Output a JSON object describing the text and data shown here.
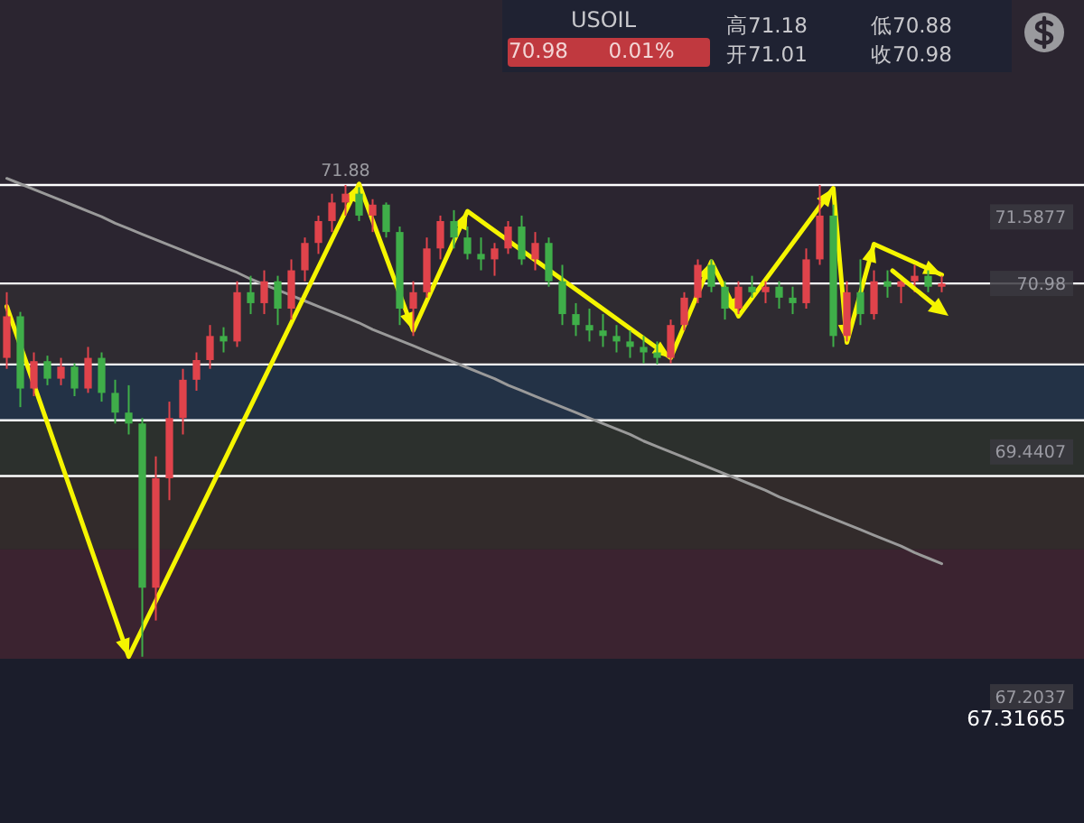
{
  "chart_data": [
    {
      "type": "candlestick",
      "title": "USOIL",
      "categories": [
        null,
        null,
        null,
        null,
        null,
        null,
        null,
        null,
        null,
        null,
        null,
        null,
        null,
        null,
        null,
        null,
        null,
        null,
        null,
        null,
        null,
        null,
        null,
        null,
        null,
        null,
        null,
        null,
        null,
        null,
        null,
        null,
        null,
        null,
        null,
        null,
        null,
        null,
        null,
        null,
        null,
        null,
        null,
        null,
        null,
        null,
        null,
        null,
        null,
        null,
        null,
        null,
        null,
        null,
        null,
        null,
        null,
        null,
        null,
        null,
        null,
        null,
        null,
        null,
        null,
        null,
        null,
        null,
        null,
        null
      ],
      "ohlc": [
        [
          70.3,
          70.9,
          70.2,
          70.68
        ],
        [
          70.68,
          70.72,
          69.85,
          70.02
        ],
        [
          70.02,
          70.35,
          69.95,
          70.27
        ],
        [
          70.27,
          70.32,
          70.05,
          70.11
        ],
        [
          70.11,
          70.3,
          70.05,
          70.22
        ],
        [
          70.22,
          70.25,
          69.95,
          70.02
        ],
        [
          70.02,
          70.4,
          69.98,
          70.3
        ],
        [
          70.3,
          70.35,
          69.9,
          69.98
        ],
        [
          69.98,
          70.1,
          69.7,
          69.8
        ],
        [
          69.8,
          70.05,
          69.6,
          69.7
        ],
        [
          69.7,
          69.75,
          67.57,
          68.2
        ],
        [
          68.2,
          69.4,
          67.9,
          69.2
        ],
        [
          69.2,
          69.9,
          69.0,
          69.75
        ],
        [
          69.75,
          70.2,
          69.6,
          70.1
        ],
        [
          70.1,
          70.35,
          70.0,
          70.28
        ],
        [
          70.28,
          70.6,
          70.2,
          70.5
        ],
        [
          70.5,
          70.58,
          70.35,
          70.45
        ],
        [
          70.45,
          71.0,
          70.4,
          70.9
        ],
        [
          70.9,
          71.05,
          70.7,
          70.8
        ],
        [
          70.8,
          71.1,
          70.7,
          71.0
        ],
        [
          71.0,
          71.05,
          70.6,
          70.75
        ],
        [
          70.75,
          71.2,
          70.65,
          71.1
        ],
        [
          71.1,
          71.4,
          71.0,
          71.35
        ],
        [
          71.35,
          71.6,
          71.25,
          71.55
        ],
        [
          71.55,
          71.8,
          71.45,
          71.72
        ],
        [
          71.72,
          71.88,
          71.6,
          71.8
        ],
        [
          71.8,
          71.86,
          71.55,
          71.6
        ],
        [
          71.6,
          71.75,
          71.45,
          71.7
        ],
        [
          71.7,
          71.72,
          71.4,
          71.45
        ],
        [
          71.45,
          71.5,
          70.6,
          70.75
        ],
        [
          70.75,
          71.0,
          70.5,
          70.9
        ],
        [
          70.9,
          71.4,
          70.85,
          71.3
        ],
        [
          71.3,
          71.6,
          71.2,
          71.55
        ],
        [
          71.55,
          71.65,
          71.3,
          71.4
        ],
        [
          71.4,
          71.5,
          71.2,
          71.25
        ],
        [
          71.25,
          71.4,
          71.1,
          71.2
        ],
        [
          71.2,
          71.35,
          71.05,
          71.3
        ],
        [
          71.3,
          71.55,
          71.25,
          71.5
        ],
        [
          71.5,
          71.6,
          71.15,
          71.2
        ],
        [
          71.2,
          71.45,
          71.1,
          71.35
        ],
        [
          71.35,
          71.4,
          70.95,
          71.0
        ],
        [
          71.0,
          71.15,
          70.6,
          70.7
        ],
        [
          70.7,
          70.8,
          70.5,
          70.6
        ],
        [
          70.6,
          70.75,
          70.45,
          70.55
        ],
        [
          70.55,
          70.7,
          70.4,
          70.5
        ],
        [
          70.5,
          70.6,
          70.35,
          70.45
        ],
        [
          70.45,
          70.55,
          70.3,
          70.4
        ],
        [
          70.4,
          70.5,
          70.25,
          70.35
        ],
        [
          70.35,
          70.45,
          70.24,
          70.3
        ],
        [
          70.3,
          70.65,
          70.25,
          70.6
        ],
        [
          70.6,
          70.9,
          70.55,
          70.85
        ],
        [
          70.85,
          71.2,
          70.8,
          71.15
        ],
        [
          71.15,
          71.2,
          70.9,
          70.95
        ],
        [
          70.95,
          71.0,
          70.65,
          70.75
        ],
        [
          70.75,
          71.0,
          70.7,
          70.95
        ],
        [
          70.95,
          71.05,
          70.85,
          70.9
        ],
        [
          70.9,
          71.0,
          70.8,
          70.95
        ],
        [
          70.95,
          71.0,
          70.75,
          70.85
        ],
        [
          70.85,
          70.95,
          70.7,
          70.8
        ],
        [
          70.8,
          71.3,
          70.75,
          71.2
        ],
        [
          71.2,
          71.88,
          71.15,
          71.6
        ],
        [
          71.6,
          71.7,
          70.4,
          70.5
        ],
        [
          70.5,
          71.0,
          70.45,
          70.9
        ],
        [
          70.9,
          71.2,
          70.6,
          70.7
        ],
        [
          70.7,
          71.1,
          70.65,
          71.0
        ],
        [
          71.0,
          71.1,
          70.85,
          70.95
        ],
        [
          70.95,
          71.05,
          70.8,
          71.0
        ],
        [
          71.0,
          71.15,
          70.9,
          71.05
        ],
        [
          71.05,
          71.1,
          70.9,
          70.95
        ],
        [
          70.95,
          71.05,
          70.9,
          70.98
        ]
      ],
      "colors": [
        "#e0434b",
        "#3fae49",
        "#e0434b",
        "#3fae49",
        "#e0434b",
        "#3fae49",
        "#e0434b",
        "#3fae49",
        "#3fae49",
        "#3fae49",
        "#3fae49",
        "#e0434b",
        "#e0434b",
        "#e0434b",
        "#e0434b",
        "#e0434b",
        "#3fae49",
        "#e0434b",
        "#3fae49",
        "#e0434b",
        "#3fae49",
        "#e0434b",
        "#e0434b",
        "#e0434b",
        "#e0434b",
        "#e0434b",
        "#3fae49",
        "#e0434b",
        "#3fae49",
        "#3fae49",
        "#e0434b",
        "#e0434b",
        "#e0434b",
        "#3fae49",
        "#3fae49",
        "#3fae49",
        "#e0434b",
        "#e0434b",
        "#3fae49",
        "#e0434b",
        "#3fae49",
        "#3fae49",
        "#3fae49",
        "#3fae49",
        "#3fae49",
        "#3fae49",
        "#3fae49",
        "#3fae49",
        "#3fae49",
        "#e0434b",
        "#e0434b",
        "#e0434b",
        "#3fae49",
        "#3fae49",
        "#e0434b",
        "#3fae49",
        "#e0434b",
        "#3fae49",
        "#3fae49",
        "#e0434b",
        "#e0434b",
        "#3fae49",
        "#e0434b",
        "#3fae49",
        "#e0434b",
        "#3fae49",
        "#e0434b",
        "#e0434b",
        "#3fae49",
        "#e0434b"
      ],
      "ylim": [
        66.05,
        73.57
      ],
      "yticks": [
        71.5877,
        70.98,
        69.4407,
        67.2037
      ],
      "tick_labels": "y",
      "ref_lines": [
        {
          "axis": "y",
          "value": 71.88,
          "color": "#ffffff"
        },
        {
          "axis": "y",
          "value": 70.98,
          "color": "#ffffff"
        },
        {
          "axis": "y",
          "value": 70.24,
          "color": "#ffffff"
        },
        {
          "axis": "y",
          "value": 69.73,
          "color": "#ffffff"
        },
        {
          "axis": "y",
          "value": 69.22,
          "color": "#ffffff"
        }
      ],
      "bands": [
        {
          "axis": "y",
          "from": 70.98,
          "to": 70.24,
          "color": "#2f2b31"
        },
        {
          "axis": "y",
          "from": 70.24,
          "to": 69.73,
          "color": "#233246"
        },
        {
          "axis": "y",
          "from": 69.73,
          "to": 69.22,
          "color": "#2c302d"
        },
        {
          "axis": "y",
          "from": 69.22,
          "to": 68.55,
          "color": "#322b2b"
        },
        {
          "axis": "y",
          "from": 68.55,
          "to": 67.55,
          "color": "#3b2330"
        },
        {
          "axis": "y",
          "from": 67.55,
          "to": 66.05,
          "color": "#1b1d2b"
        }
      ],
      "annotations": [
        "70.98",
        "0.01%",
        "高71.18",
        "开71.01",
        "低70.88",
        "收70.98",
        {
          "text": "71.88",
          "y": 71.88
        },
        "67.31665"
      ]
    },
    {
      "type": "line",
      "marker": "none",
      "tick_labels": false,
      "categories": [
        null,
        null,
        null,
        null,
        null,
        null,
        null,
        null,
        null,
        null,
        null,
        null,
        null,
        null,
        null,
        null,
        null,
        null,
        null,
        null,
        null,
        null,
        null,
        null,
        null,
        null,
        null,
        null,
        null,
        null,
        null,
        null,
        null,
        null,
        null,
        null,
        null,
        null,
        null,
        null,
        null,
        null,
        null,
        null,
        null,
        null,
        null,
        null,
        null,
        null,
        null,
        null,
        null,
        null,
        null,
        null,
        null,
        null,
        null,
        null,
        null,
        null,
        null,
        null,
        null,
        null,
        null,
        null,
        null,
        null
      ],
      "ylim": [
        66.05,
        73.57
      ],
      "series": [
        {
          "type": "line",
          "color": "#9a9a9a",
          "values": [
            71.94,
            71.89,
            71.84,
            71.79,
            71.74,
            71.69,
            71.64,
            71.59,
            71.53,
            71.48,
            71.43,
            71.38,
            71.33,
            71.28,
            71.23,
            71.18,
            71.13,
            71.08,
            71.02,
            70.97,
            70.92,
            70.87,
            70.82,
            70.77,
            70.72,
            70.67,
            70.62,
            70.56,
            70.51,
            70.46,
            70.41,
            70.36,
            70.31,
            70.26,
            70.21,
            70.16,
            70.11,
            70.05,
            70.0,
            69.95,
            69.9,
            69.85,
            69.8,
            69.75,
            69.7,
            69.65,
            69.6,
            69.54,
            69.49,
            69.44,
            69.39,
            69.34,
            69.29,
            69.24,
            69.19,
            69.14,
            69.09,
            69.03,
            68.98,
            68.93,
            68.88,
            68.83,
            68.78,
            68.73,
            68.68,
            68.63,
            68.58,
            68.52,
            68.47,
            68.42
          ]
        },
        {
          "type": "line",
          "color": "#f5f500",
          "values": [
            70.77,
            null,
            null,
            null,
            null,
            null,
            null,
            null,
            null,
            67.57,
            null,
            null,
            null,
            null,
            null,
            null,
            null,
            null,
            null,
            null,
            null,
            null,
            null,
            null,
            null,
            null,
            71.89,
            null,
            null,
            null,
            70.55,
            null,
            null,
            null,
            71.64,
            null,
            null,
            null,
            null,
            null,
            null,
            null,
            null,
            null,
            null,
            null,
            null,
            null,
            null,
            70.3,
            null,
            null,
            71.18,
            null,
            70.68,
            null,
            null,
            null,
            null,
            null,
            null,
            71.85,
            70.44,
            null,
            71.34,
            null,
            null,
            null,
            null,
            71.06
          ]
        }
      ]
    }
  ]
}
